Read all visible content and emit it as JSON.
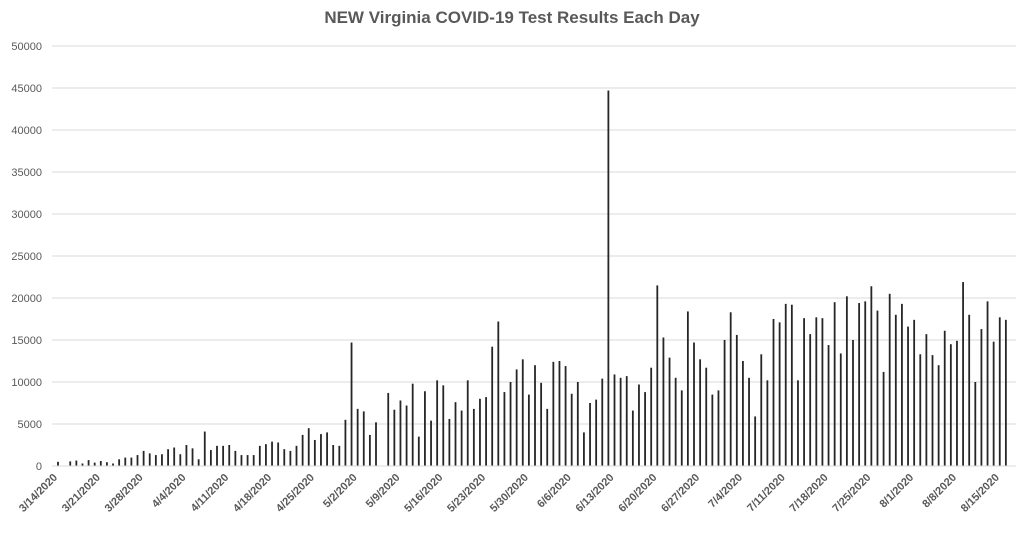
{
  "chart_data": {
    "type": "bar",
    "title": "NEW Virginia COVID-19 Test Results Each Day",
    "xlabel": "",
    "ylabel": "",
    "ylim": [
      0,
      50000
    ],
    "y_ticks": [
      "0",
      "5000",
      "10000",
      "15000",
      "20000",
      "25000",
      "30000",
      "35000",
      "40000",
      "45000",
      "50000"
    ],
    "x_tick_labels": [
      "3/14/2020",
      "3/21/2020",
      "3/28/2020",
      "4/4/2020",
      "4/11/2020",
      "4/18/2020",
      "4/25/2020",
      "5/2/2020",
      "5/9/2020",
      "5/16/2020",
      "5/23/2020",
      "5/30/2020",
      "6/6/2020",
      "6/13/2020",
      "6/20/2020",
      "6/27/2020",
      "7/4/2020",
      "7/11/2020",
      "7/18/2020",
      "7/25/2020",
      "8/1/2020",
      "8/8/2020",
      "8/15/2020"
    ],
    "grid": true,
    "legend": "none",
    "bar_color": "#262626",
    "grid_color": "#d9d9d9",
    "series": [
      {
        "x_start": "3/14/2020",
        "x_end": "8/16/2020",
        "values": [
          500,
          0,
          550,
          650,
          300,
          700,
          400,
          600,
          450,
          300,
          800,
          1000,
          1000,
          1300,
          1800,
          1500,
          1300,
          1400,
          2000,
          2200,
          1400,
          2500,
          2100,
          800,
          4100,
          1900,
          2400,
          2400,
          2500,
          1800,
          1300,
          1300,
          1300,
          2400,
          2600,
          2900,
          2800,
          2000,
          1800,
          2400,
          3700,
          4500,
          3100,
          3800,
          4000,
          2500,
          2400,
          5500,
          14700,
          6800,
          6500,
          3700,
          5200,
          0,
          8700,
          6700,
          7800,
          7200,
          9800,
          3500,
          8900,
          5400,
          10200,
          9600,
          5600,
          7600,
          6600,
          10200,
          6800,
          8000,
          8200,
          14200,
          17200,
          8800,
          10000,
          11500,
          12700,
          8500,
          12000,
          9900,
          6800,
          12400,
          12500,
          11900,
          8600,
          10000,
          4000,
          7500,
          7900,
          10400,
          44700,
          10900,
          10500,
          10700,
          6600,
          9700,
          8800,
          11700,
          21500,
          15300,
          12900,
          10500,
          9000,
          18400,
          14700,
          12700,
          11700,
          8500,
          9000,
          15000,
          18300,
          15600,
          12500,
          10500,
          5900,
          13300,
          10200,
          17500,
          17100,
          19300,
          19200,
          10200,
          17600,
          15700,
          17700,
          17600,
          14400,
          19500,
          13400,
          20200,
          15000,
          19400,
          19600,
          21400,
          18500,
          11200,
          20500,
          18000,
          19300,
          16600,
          17400,
          13300,
          15700,
          13200,
          12000,
          16100,
          14500,
          14900,
          21900,
          18000,
          10000,
          16300,
          19600,
          14800,
          17700,
          17400
        ]
      }
    ]
  }
}
